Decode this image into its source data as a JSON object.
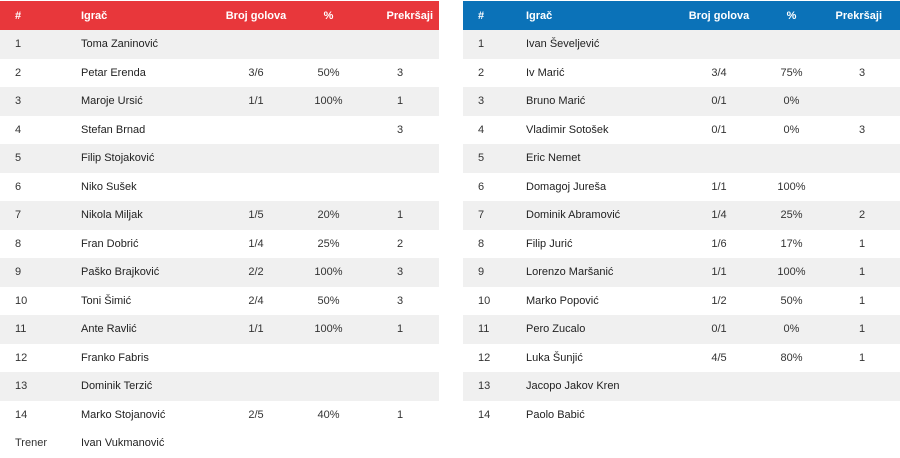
{
  "headers": {
    "num": "#",
    "player": "Igrač",
    "goals": "Broj golova",
    "pct": "%",
    "penalties": "Prekršaji"
  },
  "colors": {
    "home": "#e8373b",
    "away": "#0b72b8"
  },
  "home": {
    "players": [
      {
        "num": "1",
        "name": "Toma Zaninović",
        "goals": "",
        "pct": "",
        "pen": ""
      },
      {
        "num": "2",
        "name": "Petar Erenda",
        "goals": "3/6",
        "pct": "50%",
        "pen": "3"
      },
      {
        "num": "3",
        "name": "Maroje Ursić",
        "goals": "1/1",
        "pct": "100%",
        "pen": "1"
      },
      {
        "num": "4",
        "name": "Stefan Brnad",
        "goals": "",
        "pct": "",
        "pen": "3"
      },
      {
        "num": "5",
        "name": "Filip Stojaković",
        "goals": "",
        "pct": "",
        "pen": ""
      },
      {
        "num": "6",
        "name": "Niko Sušek",
        "goals": "",
        "pct": "",
        "pen": ""
      },
      {
        "num": "7",
        "name": "Nikola Miljak",
        "goals": "1/5",
        "pct": "20%",
        "pen": "1"
      },
      {
        "num": "8",
        "name": "Fran Dobrić",
        "goals": "1/4",
        "pct": "25%",
        "pen": "2"
      },
      {
        "num": "9",
        "name": "Paško Brajković",
        "goals": "2/2",
        "pct": "100%",
        "pen": "3"
      },
      {
        "num": "10",
        "name": "Toni Šimić",
        "goals": "2/4",
        "pct": "50%",
        "pen": "3"
      },
      {
        "num": "11",
        "name": "Ante Ravlić",
        "goals": "1/1",
        "pct": "100%",
        "pen": "1"
      },
      {
        "num": "12",
        "name": "Franko Fabris",
        "goals": "",
        "pct": "",
        "pen": ""
      },
      {
        "num": "13",
        "name": "Dominik Terzić",
        "goals": "",
        "pct": "",
        "pen": ""
      },
      {
        "num": "14",
        "name": "Marko Stojanović",
        "goals": "2/5",
        "pct": "40%",
        "pen": "1"
      }
    ],
    "coach": {
      "label": "Trener",
      "name": "Ivan Vukmanović"
    }
  },
  "away": {
    "players": [
      {
        "num": "1",
        "name": "Ivan Ševeljević",
        "goals": "",
        "pct": "",
        "pen": ""
      },
      {
        "num": "2",
        "name": "Iv Marić",
        "goals": "3/4",
        "pct": "75%",
        "pen": "3"
      },
      {
        "num": "3",
        "name": "Bruno Marić",
        "goals": "0/1",
        "pct": "0%",
        "pen": ""
      },
      {
        "num": "4",
        "name": "Vladimir Sotošek",
        "goals": "0/1",
        "pct": "0%",
        "pen": "3"
      },
      {
        "num": "5",
        "name": "Eric Nemet",
        "goals": "",
        "pct": "",
        "pen": ""
      },
      {
        "num": "6",
        "name": "Domagoj Jureša",
        "goals": "1/1",
        "pct": "100%",
        "pen": ""
      },
      {
        "num": "7",
        "name": "Dominik Abramović",
        "goals": "1/4",
        "pct": "25%",
        "pen": "2"
      },
      {
        "num": "8",
        "name": "Filip Jurić",
        "goals": "1/6",
        "pct": "17%",
        "pen": "1"
      },
      {
        "num": "9",
        "name": "Lorenzo Maršanić",
        "goals": "1/1",
        "pct": "100%",
        "pen": "1"
      },
      {
        "num": "10",
        "name": "Marko Popović",
        "goals": "1/2",
        "pct": "50%",
        "pen": "1"
      },
      {
        "num": "11",
        "name": "Pero Zucalo",
        "goals": "0/1",
        "pct": "0%",
        "pen": "1"
      },
      {
        "num": "12",
        "name": "Luka Šunjić",
        "goals": "4/5",
        "pct": "80%",
        "pen": "1"
      },
      {
        "num": "13",
        "name": "Jacopo Jakov Kren",
        "goals": "",
        "pct": "",
        "pen": ""
      },
      {
        "num": "14",
        "name": "Paolo Babić",
        "goals": "",
        "pct": "",
        "pen": ""
      }
    ]
  }
}
